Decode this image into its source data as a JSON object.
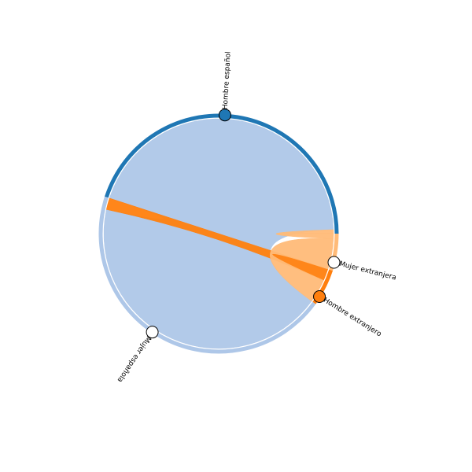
{
  "chart_data": {
    "type": "chord",
    "nodes": [
      {
        "label": "Hombre español",
        "angle_deg": -87,
        "arc_start_deg": -162,
        "arc_end_deg": 0,
        "color": "#1f77b4",
        "marker_fill": "#1f77b4"
      },
      {
        "label": "Mujer extranjera",
        "angle_deg": 14,
        "arc_start_deg": 0,
        "arc_end_deg": 18,
        "color": "#ffbb78",
        "marker_fill": "#ffffff"
      },
      {
        "label": "Hombre extranjero",
        "angle_deg": 32,
        "arc_start_deg": 18,
        "arc_end_deg": 36,
        "color": "#ff7f0e",
        "marker_fill": "#ff7f0e"
      },
      {
        "label": "Mujer española",
        "angle_deg": 124,
        "arc_start_deg": 36,
        "arc_end_deg": 198,
        "color": "#aec7e8",
        "marker_fill": "#ffffff"
      }
    ],
    "links": [
      {
        "source": "Hombre español",
        "target": "Mujer española",
        "value": 80,
        "color": "#aec7e8"
      },
      {
        "source": "Hombre extranjero",
        "target": "Mujer española",
        "value": 3,
        "color": "#ff7f0e"
      },
      {
        "source": "Mujer extranjera",
        "target": "Hombre español",
        "value": 1,
        "color": "#ffbb78"
      },
      {
        "source": "Hombre extranjero",
        "target": "Mujer extranjera",
        "value": 6,
        "color": "#ffbb78"
      }
    ],
    "legend": "none",
    "grid": false
  }
}
